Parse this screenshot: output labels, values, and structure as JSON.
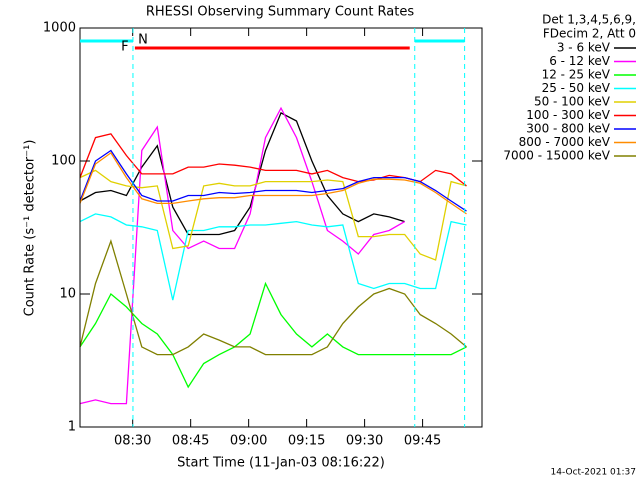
{
  "chart_data": {
    "type": "line",
    "title": "RHESSI Observing Summary Count Rates",
    "x_label": "Start Time (11-Jan-03 08:16:22)",
    "y_label": "Count Rate (s⁻¹ detector⁻¹)",
    "legend_header": [
      "Det 1,3,4,5,6,9,",
      "FDecim 2, Att 0"
    ],
    "timestamp": "14-Oct-2021 01:37",
    "log_y": true,
    "xlim": [
      0,
      104
    ],
    "ylim": [
      1,
      1000
    ],
    "yticks": [
      1,
      10,
      100,
      1000
    ],
    "xticks": [
      {
        "value": 13.63,
        "label": "08:30"
      },
      {
        "value": 28.63,
        "label": "08:45"
      },
      {
        "value": 43.63,
        "label": "09:00"
      },
      {
        "value": 58.63,
        "label": "09:15"
      },
      {
        "value": 73.63,
        "label": "09:30"
      },
      {
        "value": 88.63,
        "label": "09:45"
      }
    ],
    "flare": {
      "label": "F",
      "color": "#ff0000",
      "start": 14.2,
      "end": 85.3
    },
    "night": {
      "label": "N",
      "color": "#00ffff",
      "intervals": [
        [
          0,
          13.7
        ],
        [
          86.6,
          99.5
        ]
      ]
    },
    "x": [
      0,
      4,
      8,
      12,
      16,
      20,
      24,
      28,
      32,
      36,
      40,
      44,
      48,
      52,
      56,
      60,
      64,
      68,
      72,
      76,
      80,
      84,
      88,
      92,
      96,
      100
    ],
    "series": [
      {
        "name": "3 - 6 keV",
        "color": "#000000",
        "values": [
          50,
          58,
          60,
          55,
          90,
          130,
          45,
          28,
          28,
          28,
          30,
          45,
          120,
          230,
          200,
          100,
          55,
          40,
          35,
          40,
          38,
          35,
          null,
          null,
          null,
          null
        ]
      },
      {
        "name": "6 - 12 keV",
        "color": "#ff00ff",
        "values": [
          1.5,
          1.6,
          1.5,
          1.5,
          120,
          180,
          30,
          22,
          25,
          22,
          22,
          40,
          150,
          250,
          150,
          70,
          30,
          25,
          20,
          28,
          30,
          35,
          null,
          null,
          null,
          null
        ]
      },
      {
        "name": "12 - 25 keV",
        "color": "#00ff00",
        "values": [
          4,
          6,
          10,
          8,
          6,
          5,
          3.5,
          2,
          3,
          3.5,
          4,
          5,
          12,
          7,
          5,
          4,
          5,
          4,
          3.5,
          3.5,
          3.5,
          3.5,
          3.5,
          3.5,
          3.5,
          4
        ]
      },
      {
        "name": "25 - 50 keV",
        "color": "#00ffff",
        "values": [
          35,
          40,
          38,
          33,
          32,
          30,
          9,
          30,
          30,
          32,
          32,
          33,
          33,
          34,
          35,
          33,
          32,
          33,
          12,
          11,
          12,
          12,
          11,
          11,
          35,
          33
        ]
      },
      {
        "name": "50 - 100 keV",
        "color": "#e0d000",
        "values": [
          75,
          85,
          70,
          65,
          63,
          65,
          22,
          23,
          65,
          68,
          65,
          65,
          70,
          70,
          70,
          70,
          72,
          70,
          27,
          27,
          28,
          28,
          20,
          18,
          70,
          65
        ]
      },
      {
        "name": "100 - 300 keV",
        "color": "#ff0000",
        "values": [
          75,
          150,
          160,
          110,
          80,
          80,
          80,
          90,
          90,
          95,
          93,
          90,
          85,
          85,
          85,
          80,
          85,
          75,
          70,
          72,
          78,
          75,
          70,
          85,
          80,
          65
        ]
      },
      {
        "name": "300 - 800 keV",
        "color": "#0000ff",
        "values": [
          50,
          100,
          120,
          80,
          55,
          50,
          50,
          55,
          55,
          58,
          57,
          58,
          60,
          60,
          60,
          58,
          60,
          62,
          70,
          75,
          75,
          75,
          70,
          60,
          50,
          42
        ]
      },
      {
        "name": "800 - 7000 keV",
        "color": "#ff8c00",
        "values": [
          48,
          95,
          115,
          75,
          52,
          48,
          48,
          50,
          52,
          53,
          53,
          55,
          55,
          55,
          55,
          55,
          57,
          60,
          68,
          73,
          73,
          72,
          68,
          58,
          48,
          40
        ]
      },
      {
        "name": "7000 - 15000 keV",
        "color": "#808000",
        "values": [
          4,
          12,
          25,
          10,
          4,
          3.5,
          3.5,
          4,
          5,
          4.5,
          4,
          4,
          3.5,
          3.5,
          3.5,
          3.5,
          4,
          6,
          8,
          10,
          11,
          10,
          7,
          6,
          5,
          4
        ]
      }
    ]
  }
}
